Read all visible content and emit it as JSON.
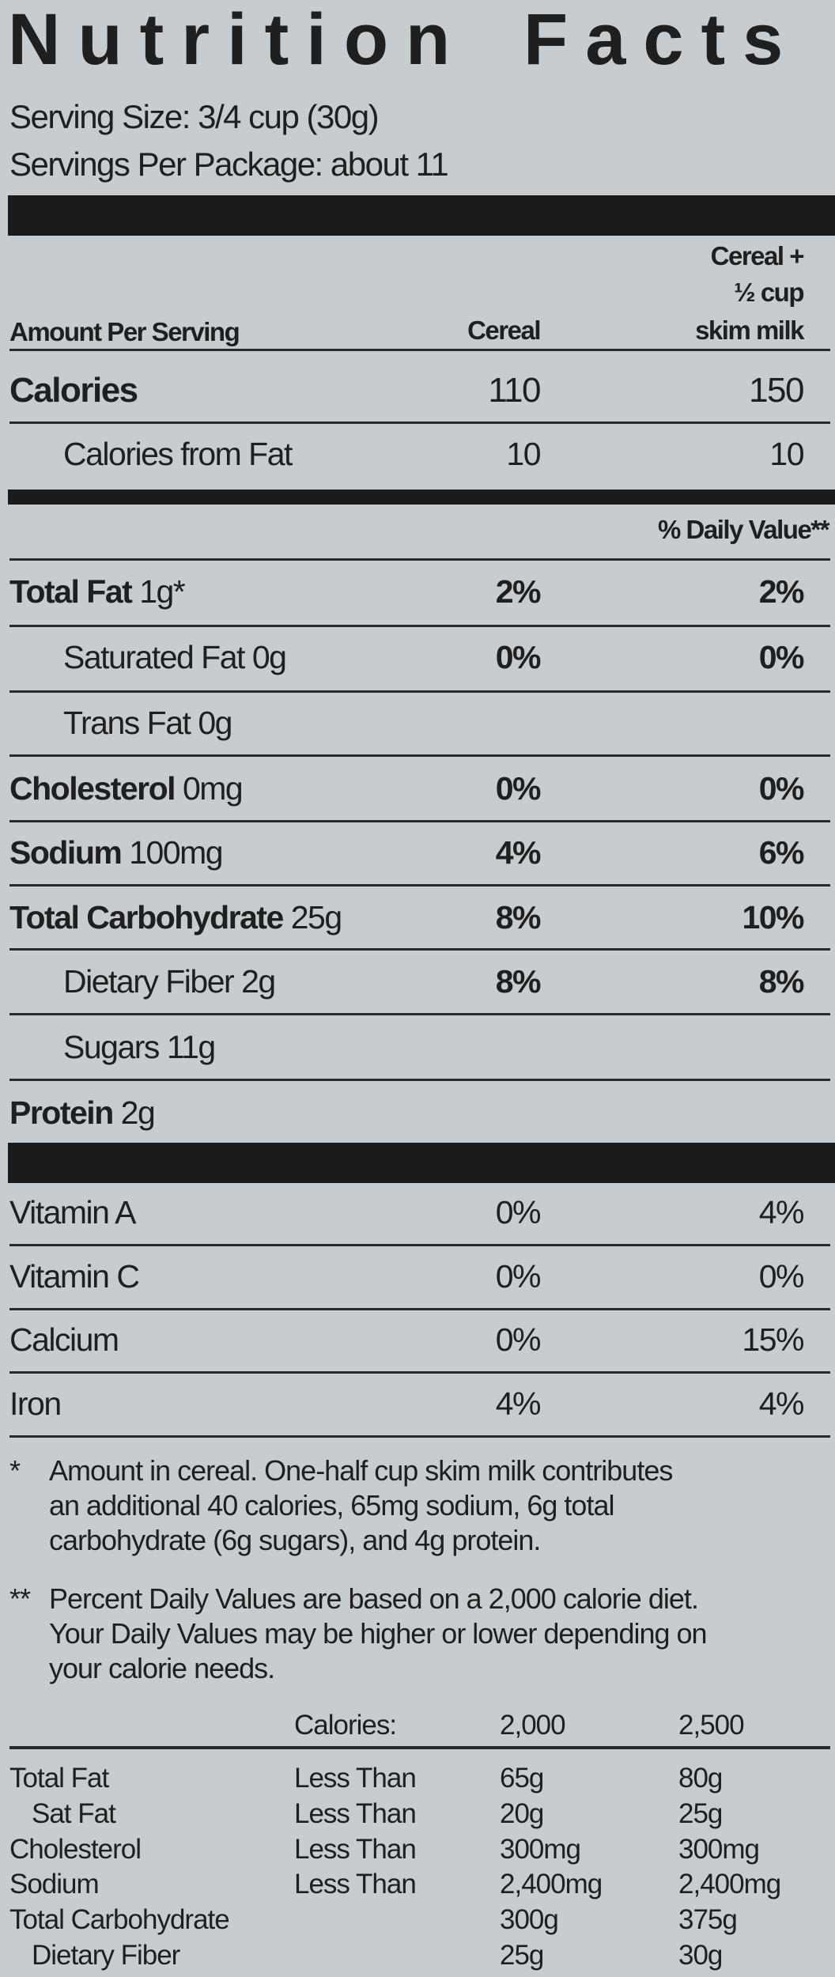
{
  "title": {
    "word1": "Nutrition",
    "word2": "Facts"
  },
  "serving_size": "Serving Size: 3/4 cup (30g)",
  "servings_per_package": "Servings Per Package: about 11",
  "header": {
    "amount_per_serving": "Amount Per Serving",
    "col_cereal": "Cereal",
    "col_milk_line1": "Cereal +",
    "col_milk_line2": "½ cup",
    "col_milk_line3": "skim milk",
    "daily_value": "% Daily Value**"
  },
  "calories": {
    "label": "Calories",
    "cereal": "110",
    "with_milk": "150"
  },
  "calories_from_fat": {
    "label": "Calories from Fat",
    "cereal": "10",
    "with_milk": "10"
  },
  "nutrients": [
    {
      "name": "Total Fat",
      "amount": "1g*",
      "cereal": "2%",
      "with_milk": "2%",
      "indent": false
    },
    {
      "name": "Saturated Fat",
      "amount": "0g",
      "cereal": "0%",
      "with_milk": "0%",
      "indent": true
    },
    {
      "name": "Trans Fat",
      "amount": "0g",
      "cereal": "",
      "with_milk": "",
      "indent": true
    },
    {
      "name": "Cholesterol",
      "amount": "0mg",
      "cereal": "0%",
      "with_milk": "0%",
      "indent": false
    },
    {
      "name": "Sodium",
      "amount": "100mg",
      "cereal": "4%",
      "with_milk": "6%",
      "indent": false
    },
    {
      "name": "Total Carbohydrate",
      "amount": "25g",
      "cereal": "8%",
      "with_milk": "10%",
      "indent": false
    },
    {
      "name": "Dietary Fiber",
      "amount": "2g",
      "cereal": "8%",
      "with_milk": "8%",
      "indent": true
    },
    {
      "name": "Sugars",
      "amount": "11g",
      "cereal": "",
      "with_milk": "",
      "indent": true
    },
    {
      "name": "Protein",
      "amount": "2g",
      "cereal": "",
      "with_milk": "",
      "indent": false
    }
  ],
  "vitamins": [
    {
      "name": "Vitamin A",
      "cereal": "0%",
      "with_milk": "4%"
    },
    {
      "name": "Vitamin C",
      "cereal": "0%",
      "with_milk": "0%"
    },
    {
      "name": "Calcium",
      "cereal": "0%",
      "with_milk": "15%"
    },
    {
      "name": "Iron",
      "cereal": "4%",
      "with_milk": "4%"
    }
  ],
  "footnotes": [
    {
      "mark": "*",
      "lines": [
        "Amount in cereal. One-half cup skim milk contributes",
        "an additional 40 calories, 65mg sodium, 6g total",
        "carbohydrate (6g sugars), and 4g protein."
      ]
    },
    {
      "mark": "**",
      "lines": [
        "Percent Daily Values are based on a 2,000 calorie diet.",
        "Your Daily Values may be higher or lower depending on",
        "your calorie needs."
      ]
    }
  ],
  "dv_table": {
    "header": [
      "",
      "Calories:",
      "2,000",
      "2,500"
    ],
    "rows": [
      {
        "name": "Total Fat",
        "qualifier": "Less Than",
        "v2000": "65g",
        "v2500": "80g",
        "indent": false
      },
      {
        "name": "Sat Fat",
        "qualifier": "Less Than",
        "v2000": "20g",
        "v2500": "25g",
        "indent": true
      },
      {
        "name": "Cholesterol",
        "qualifier": "Less Than",
        "v2000": "300mg",
        "v2500": "300mg",
        "indent": false
      },
      {
        "name": "Sodium",
        "qualifier": "Less Than",
        "v2000": "2,400mg",
        "v2500": "2,400mg",
        "indent": false
      },
      {
        "name": "Total Carbohydrate",
        "qualifier": "",
        "v2000": "300g",
        "v2500": "375g",
        "indent": false
      },
      {
        "name": "Dietary Fiber",
        "qualifier": "",
        "v2000": "25g",
        "v2500": "30g",
        "indent": true
      }
    ]
  },
  "colors": {
    "background": "#c6cccf",
    "ink": "#1f1f1f"
  }
}
